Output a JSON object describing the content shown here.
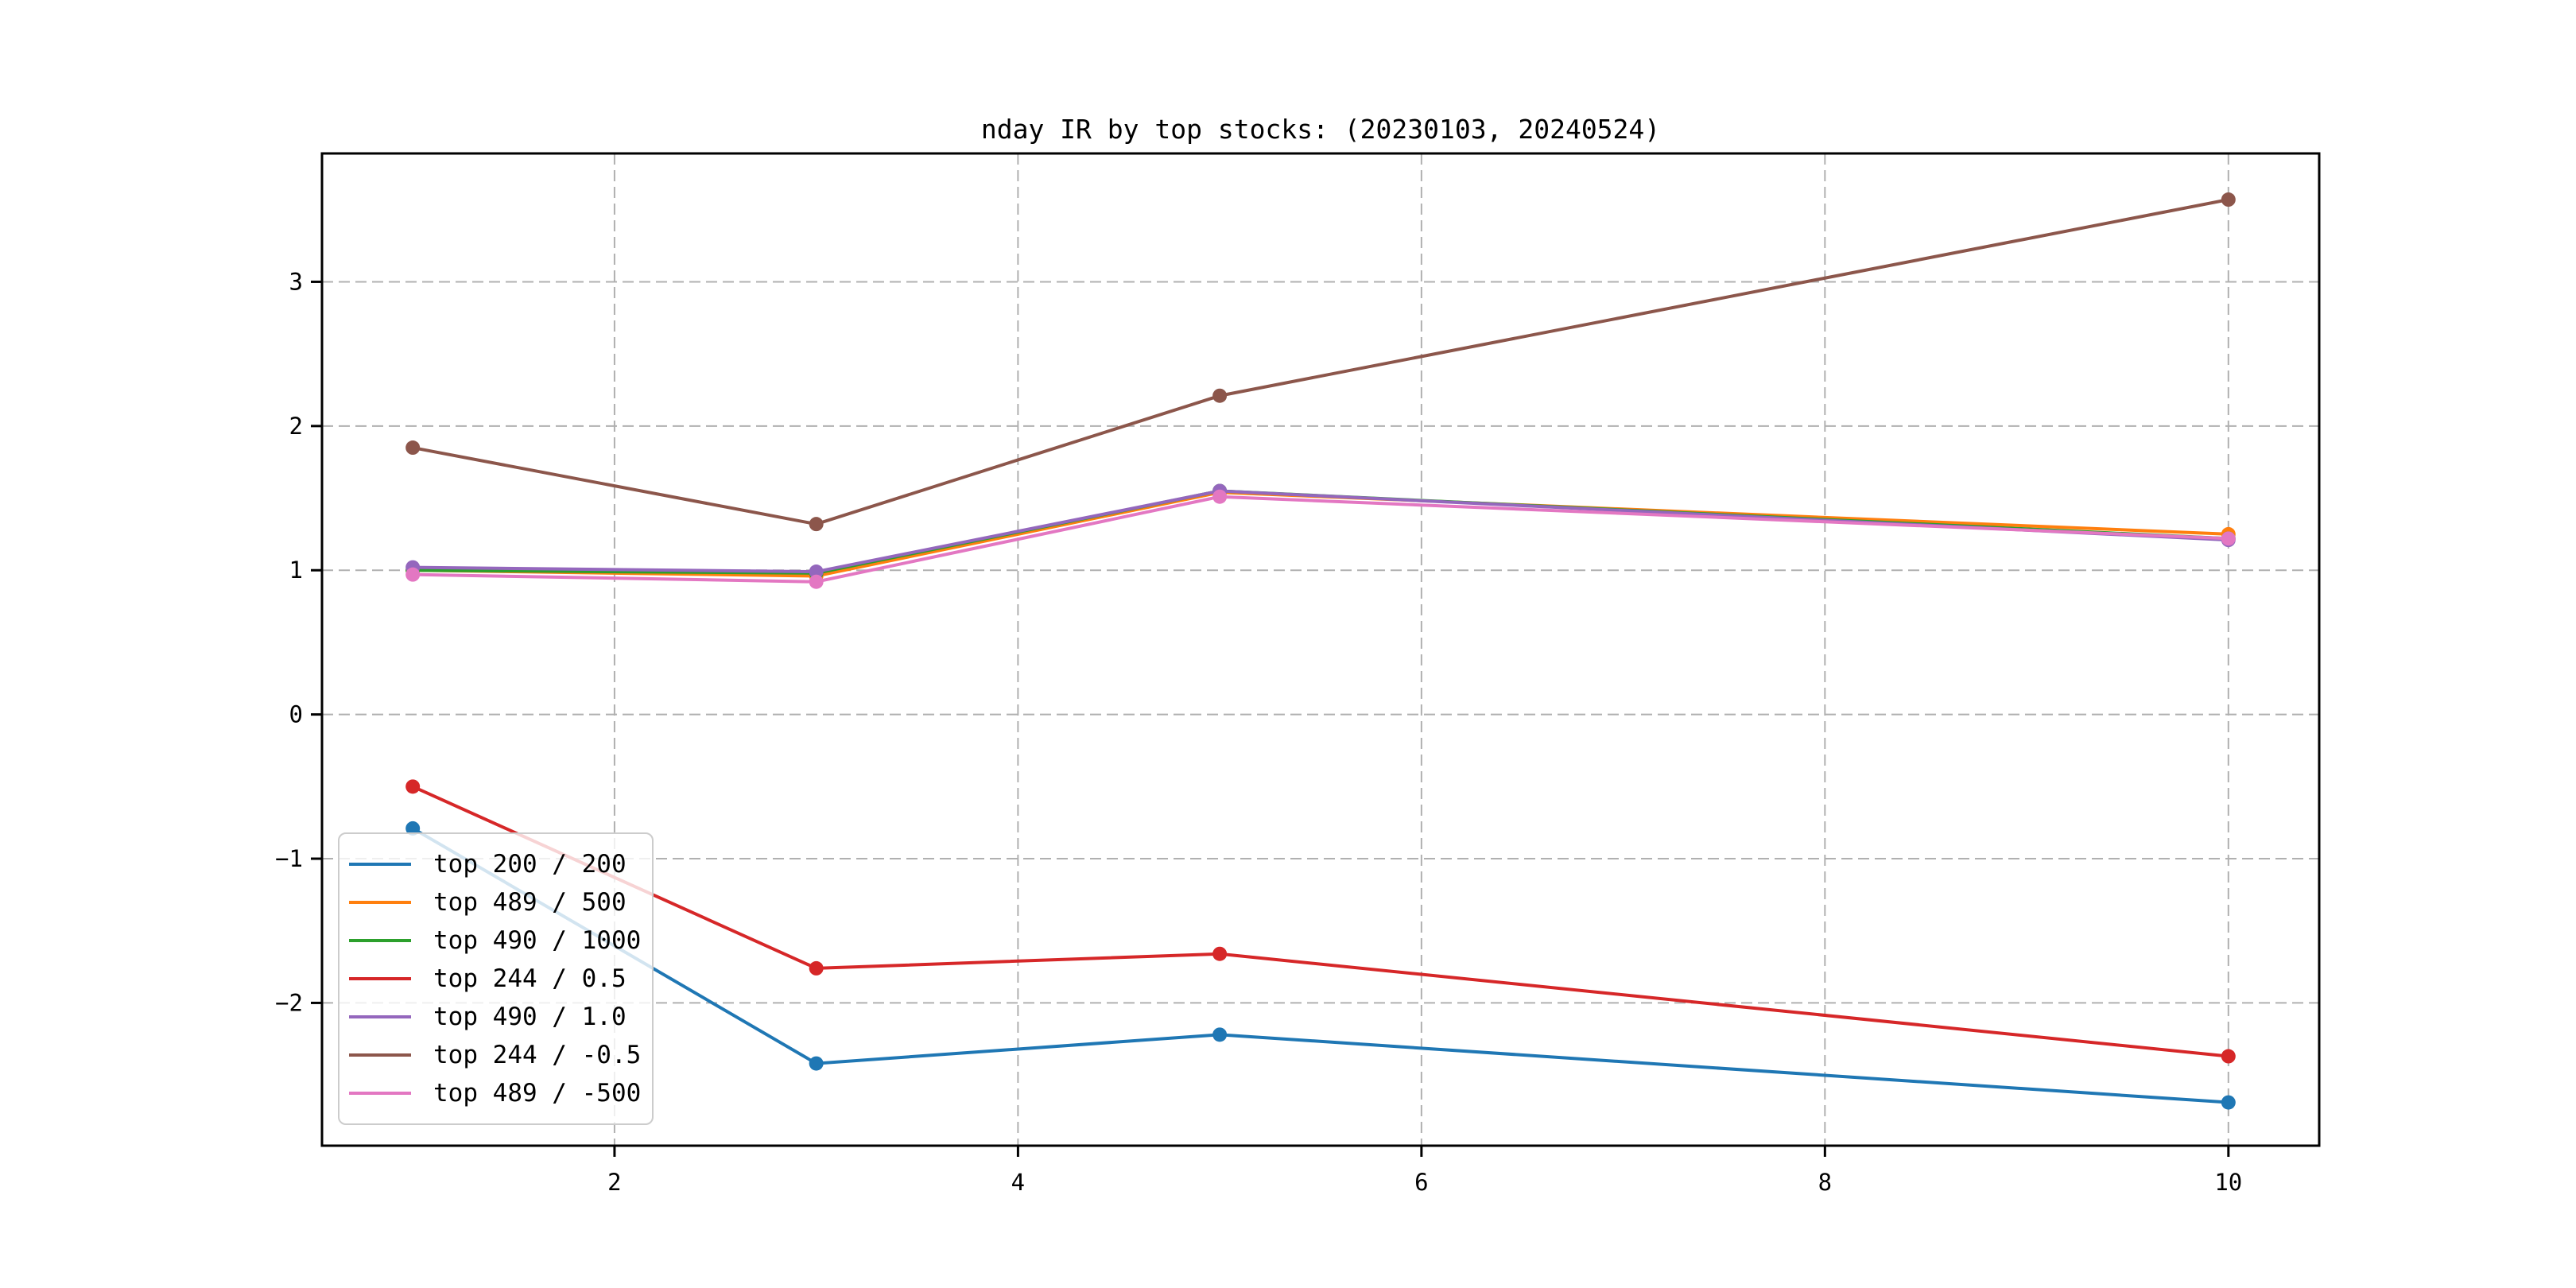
{
  "figure": {
    "background": "#ffffff"
  },
  "chart_data": {
    "type": "line",
    "title": "nday IR by top stocks: (20230103, 20240524)",
    "xlabel": "",
    "ylabel": "",
    "x": [
      1,
      3,
      5,
      10
    ],
    "series": [
      {
        "name": "top 200 / 200",
        "color": "#1f77b4",
        "values": [
          -0.79,
          -2.42,
          -2.22,
          -2.69
        ]
      },
      {
        "name": "top 489 / 500",
        "color": "#ff7f0e",
        "values": [
          1.0,
          0.96,
          1.54,
          1.25
        ]
      },
      {
        "name": "top 490 / 1000",
        "color": "#2ca02c",
        "values": [
          1.0,
          0.98,
          1.55,
          1.22
        ]
      },
      {
        "name": "top 244 / 0.5",
        "color": "#d62728",
        "values": [
          -0.5,
          -1.76,
          -1.66,
          -2.37
        ]
      },
      {
        "name": "top 490 / 1.0",
        "color": "#9467bd",
        "values": [
          1.02,
          0.99,
          1.55,
          1.21
        ]
      },
      {
        "name": "top 244 / -0.5",
        "color": "#8c564b",
        "values": [
          1.85,
          1.32,
          2.21,
          3.57
        ]
      },
      {
        "name": "top 489 / -500",
        "color": "#e377c2",
        "values": [
          0.97,
          0.92,
          1.51,
          1.22
        ]
      }
    ],
    "xticks": [
      2,
      4,
      6,
      8,
      10
    ],
    "yticks": [
      -2,
      -1,
      0,
      1,
      2,
      3
    ],
    "xlim": [
      0.55,
      10.45
    ],
    "ylim": [
      -2.99,
      3.89
    ],
    "grid": true,
    "grid_style": "dashed",
    "legend_position": "lower-left",
    "marker": "circle",
    "style": {
      "grid_color": "#b0b0b0",
      "spine_color": "#000000",
      "legend_border_color": "#cccccc",
      "text_color": "#000000"
    }
  }
}
